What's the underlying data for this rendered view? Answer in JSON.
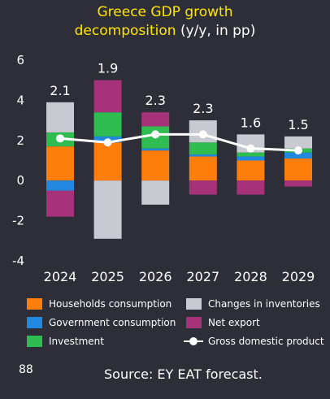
{
  "title": {
    "main": "Greece GDP growth",
    "main2": "decomposition",
    "unit": "(y/y, in pp)"
  },
  "page_number": "88",
  "source": "Source: EY EAT forecast.",
  "colors": {
    "background": "#2e2e38",
    "households": "#ff7d0a",
    "government": "#2188e0",
    "investment": "#2fbd52",
    "inventories": "#c9c9d1",
    "net_export": "#a6337a",
    "gdp": "#ffffff",
    "title": "#ffe600"
  },
  "chart_data": {
    "type": "bar",
    "stacked": true,
    "categories": [
      "2024",
      "2025",
      "2026",
      "2027",
      "2028",
      "2029"
    ],
    "ylim": [
      -4,
      6
    ],
    "yticks": [
      "-4",
      "-2",
      "0",
      "2",
      "4",
      "6"
    ],
    "grid": false,
    "legend_position": "bottom",
    "series": [
      {
        "name": "Households consumption",
        "key": "households",
        "values": [
          1.7,
          1.9,
          1.5,
          1.2,
          1.0,
          1.1
        ]
      },
      {
        "name": "Government consumption",
        "key": "government",
        "values": [
          -0.5,
          0.3,
          0.1,
          0.1,
          0.2,
          0.3
        ]
      },
      {
        "name": "Investment",
        "key": "investment",
        "values": [
          0.7,
          1.2,
          1.1,
          0.6,
          0.2,
          0.2
        ]
      },
      {
        "name": "Changes in inventories",
        "key": "inventories",
        "values": [
          1.5,
          -2.9,
          -1.2,
          1.1,
          0.9,
          0.6
        ]
      },
      {
        "name": "Net export",
        "key": "net_export",
        "values": [
          -1.3,
          1.6,
          0.7,
          -0.7,
          -0.7,
          -0.3
        ]
      }
    ],
    "line": {
      "name": "Gross domestic product",
      "values": [
        2.1,
        1.9,
        2.3,
        2.3,
        1.6,
        1.5
      ],
      "labels": [
        "2.1",
        "1.9",
        "2.3",
        "2.3",
        "1.6",
        "1.5"
      ]
    }
  }
}
